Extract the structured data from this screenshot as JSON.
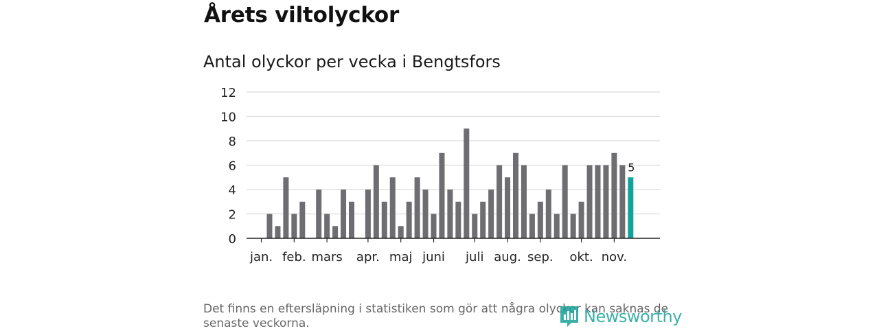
{
  "title": "Årets viltolyckor",
  "subtitle": "Antal olyckor per vecka i Bengtsfors",
  "footnote": "Det finns en eftersläpning i statistiken som gör att några olyckor kan saknas de senaste veckorna.",
  "logo_text": "Newsworthy",
  "chart_data": {
    "type": "bar",
    "title": "Antal olyckor per vecka i Bengtsfors",
    "xlabel": "",
    "ylabel": "",
    "ylim": [
      0,
      12
    ],
    "yticks": [
      "0",
      "2",
      "4",
      "6",
      "8",
      "10",
      "12"
    ],
    "grid": true,
    "weeks": [
      1,
      2,
      3,
      4,
      5,
      6,
      7,
      8,
      9,
      10,
      11,
      12,
      13,
      14,
      15,
      16,
      17,
      18,
      19,
      20,
      21,
      22,
      23,
      24,
      25,
      26,
      27,
      28,
      29,
      30,
      31,
      32,
      33,
      34,
      35,
      36,
      37,
      38,
      39,
      40,
      41,
      42,
      43,
      44,
      45,
      46
    ],
    "values": [
      0,
      2,
      1,
      5,
      2,
      3,
      0,
      4,
      2,
      1,
      4,
      3,
      0,
      4,
      6,
      3,
      5,
      1,
      3,
      5,
      4,
      2,
      7,
      4,
      3,
      9,
      2,
      3,
      4,
      6,
      5,
      7,
      6,
      2,
      3,
      4,
      2,
      6,
      2,
      3,
      6,
      6,
      6,
      7,
      6,
      5
    ],
    "month_labels": [
      "jan.",
      "feb.",
      "mars",
      "apr.",
      "maj",
      "juni",
      "juli",
      "aug.",
      "sep.",
      "okt.",
      "nov."
    ],
    "month_label_weeks": [
      1,
      5,
      9,
      14,
      18,
      22,
      27,
      31,
      35,
      40,
      44
    ],
    "highlight_color": "#11a39b",
    "bar_color": "#6d6d72",
    "last_value_label": "5"
  }
}
